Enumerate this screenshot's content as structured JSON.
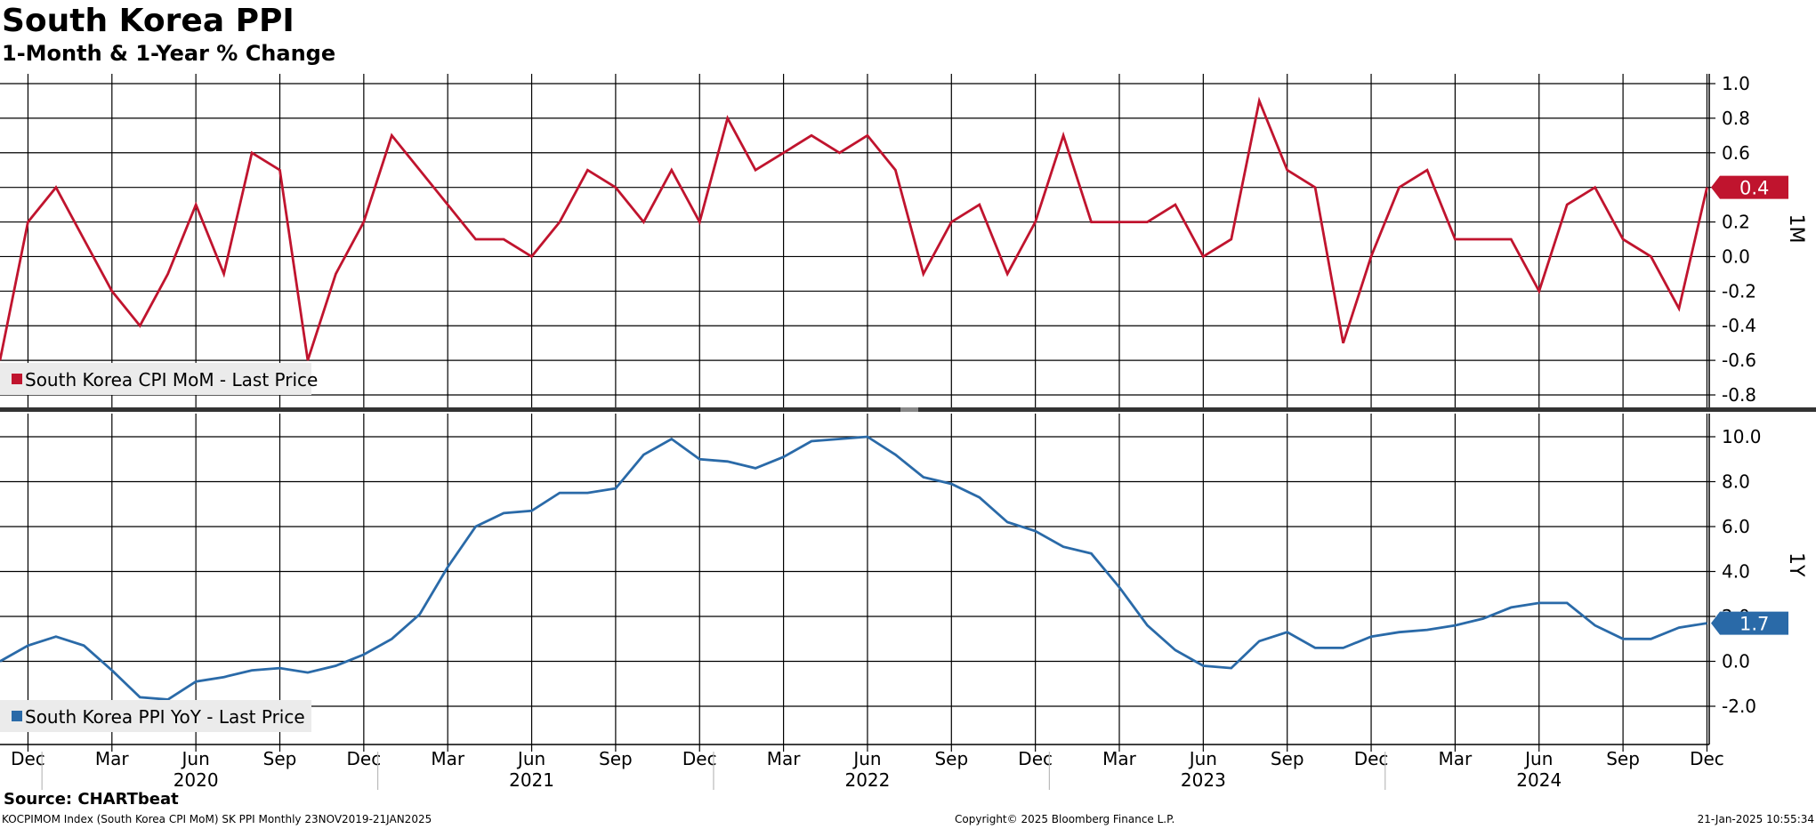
{
  "header": {
    "title": "South Korea PPI",
    "subtitle": "1-Month & 1-Year % Change"
  },
  "footer": {
    "source": "Source: CHARTbeat",
    "ticker_info": "KOCPIMOM Index (South Korea CPI MoM) SK PPI  Monthly 23NOV2019-21JAN2025",
    "copyright": "Copyright© 2025 Bloomberg Finance L.P.",
    "timestamp": "21-Jan-2025 10:55:34"
  },
  "chart_data": [
    {
      "type": "line",
      "panel": "top",
      "axis_label": "1M",
      "legend": "South Korea CPI MoM - Last Price",
      "last_value_label": "0.4",
      "color": "#c0142e",
      "ylim": [
        -0.85,
        1.05
      ],
      "yticks": [
        1.0,
        0.8,
        0.6,
        0.4,
        0.2,
        0.0,
        -0.2,
        -0.4,
        -0.6,
        -0.8
      ],
      "ytick_labels": [
        "1.0",
        "0.8",
        "0.6",
        "0.4",
        "0.2",
        "0.0",
        "-0.2",
        "-0.4",
        "-0.6",
        "-0.8"
      ],
      "grid": true,
      "legend_placement": "bottom-left",
      "x": [
        "2019-11",
        "2019-12",
        "2020-01",
        "2020-02",
        "2020-03",
        "2020-04",
        "2020-05",
        "2020-06",
        "2020-07",
        "2020-08",
        "2020-09",
        "2020-10",
        "2020-11",
        "2020-12",
        "2021-01",
        "2021-02",
        "2021-03",
        "2021-04",
        "2021-05",
        "2021-06",
        "2021-07",
        "2021-08",
        "2021-09",
        "2021-10",
        "2021-11",
        "2021-12",
        "2022-01",
        "2022-02",
        "2022-03",
        "2022-04",
        "2022-05",
        "2022-06",
        "2022-07",
        "2022-08",
        "2022-09",
        "2022-10",
        "2022-11",
        "2022-12",
        "2023-01",
        "2023-02",
        "2023-03",
        "2023-04",
        "2023-05",
        "2023-06",
        "2023-07",
        "2023-08",
        "2023-09",
        "2023-10",
        "2023-11",
        "2023-12",
        "2024-01",
        "2024-02",
        "2024-03",
        "2024-04",
        "2024-05",
        "2024-06",
        "2024-07",
        "2024-08",
        "2024-09",
        "2024-10",
        "2024-11",
        "2024-12"
      ],
      "values": [
        -0.6,
        0.2,
        0.4,
        0.1,
        -0.2,
        -0.4,
        -0.1,
        0.3,
        -0.1,
        0.6,
        0.5,
        -0.6,
        -0.1,
        0.2,
        0.7,
        0.5,
        0.3,
        0.1,
        0.1,
        0.0,
        0.2,
        0.5,
        0.4,
        0.2,
        0.5,
        0.2,
        0.8,
        0.5,
        0.6,
        0.7,
        0.6,
        0.7,
        0.5,
        -0.1,
        0.2,
        0.3,
        -0.1,
        0.2,
        0.7,
        0.2,
        0.2,
        0.2,
        0.3,
        0.0,
        0.1,
        0.9,
        0.5,
        0.4,
        -0.5,
        0.0,
        0.4,
        0.5,
        0.1,
        0.1,
        0.1,
        -0.2,
        0.3,
        0.4,
        0.1,
        0.0,
        -0.3,
        0.4
      ]
    },
    {
      "type": "line",
      "panel": "bottom",
      "axis_label": "1Y",
      "legend": "South Korea PPI YoY - Last Price",
      "last_value_label": "1.7",
      "color": "#2a6aa8",
      "ylim": [
        -3.7,
        11.0
      ],
      "yticks": [
        10.0,
        8.0,
        6.0,
        4.0,
        2.0,
        0.0,
        -2.0
      ],
      "ytick_labels": [
        "10.0",
        "8.0",
        "6.0",
        "4.0",
        "2.0",
        "0.0",
        "-2.0"
      ],
      "grid": true,
      "legend_placement": "bottom-left",
      "x": [
        "2019-11",
        "2019-12",
        "2020-01",
        "2020-02",
        "2020-03",
        "2020-04",
        "2020-05",
        "2020-06",
        "2020-07",
        "2020-08",
        "2020-09",
        "2020-10",
        "2020-11",
        "2020-12",
        "2021-01",
        "2021-02",
        "2021-03",
        "2021-04",
        "2021-05",
        "2021-06",
        "2021-07",
        "2021-08",
        "2021-09",
        "2021-10",
        "2021-11",
        "2021-12",
        "2022-01",
        "2022-02",
        "2022-03",
        "2022-04",
        "2022-05",
        "2022-06",
        "2022-07",
        "2022-08",
        "2022-09",
        "2022-10",
        "2022-11",
        "2022-12",
        "2023-01",
        "2023-02",
        "2023-03",
        "2023-04",
        "2023-05",
        "2023-06",
        "2023-07",
        "2023-08",
        "2023-09",
        "2023-10",
        "2023-11",
        "2023-12",
        "2024-01",
        "2024-02",
        "2024-03",
        "2024-04",
        "2024-05",
        "2024-06",
        "2024-07",
        "2024-08",
        "2024-09",
        "2024-10",
        "2024-11",
        "2024-12"
      ],
      "values": [
        0.0,
        0.7,
        1.1,
        0.7,
        -0.4,
        -1.6,
        -1.7,
        -0.9,
        -0.7,
        -0.4,
        -0.3,
        -0.5,
        -0.2,
        0.3,
        1.0,
        2.1,
        4.2,
        6.0,
        6.6,
        6.7,
        7.5,
        7.5,
        7.7,
        9.2,
        9.9,
        9.0,
        8.9,
        8.6,
        9.1,
        9.8,
        9.9,
        10.0,
        9.2,
        8.2,
        7.9,
        7.3,
        6.2,
        5.8,
        5.1,
        4.8,
        3.3,
        1.6,
        0.5,
        -0.2,
        -0.3,
        0.9,
        1.3,
        0.6,
        0.6,
        1.1,
        1.3,
        1.4,
        1.6,
        1.9,
        2.4,
        2.6,
        2.6,
        1.6,
        1.0,
        1.0,
        1.5,
        1.7
      ]
    }
  ],
  "x_axis": {
    "month_ticks": [
      {
        "label": "Dec",
        "i": 1
      },
      {
        "label": "Mar",
        "i": 4
      },
      {
        "label": "Jun",
        "i": 7
      },
      {
        "label": "Sep",
        "i": 10
      },
      {
        "label": "Dec",
        "i": 13
      },
      {
        "label": "Mar",
        "i": 16
      },
      {
        "label": "Jun",
        "i": 19
      },
      {
        "label": "Sep",
        "i": 22
      },
      {
        "label": "Dec",
        "i": 25
      },
      {
        "label": "Mar",
        "i": 28
      },
      {
        "label": "Jun",
        "i": 31
      },
      {
        "label": "Sep",
        "i": 34
      },
      {
        "label": "Dec",
        "i": 37
      },
      {
        "label": "Mar",
        "i": 40
      },
      {
        "label": "Jun",
        "i": 43
      },
      {
        "label": "Sep",
        "i": 46
      },
      {
        "label": "Dec",
        "i": 49
      },
      {
        "label": "Mar",
        "i": 52
      },
      {
        "label": "Jun",
        "i": 55
      },
      {
        "label": "Sep",
        "i": 58
      },
      {
        "label": "Dec",
        "i": 61
      }
    ],
    "year_labels": [
      {
        "label": "2020",
        "i": 7
      },
      {
        "label": "2021",
        "i": 19
      },
      {
        "label": "2022",
        "i": 31
      },
      {
        "label": "2023",
        "i": 43
      },
      {
        "label": "2024",
        "i": 55
      }
    ],
    "year_dividers": [
      1.5,
      13.5,
      25.5,
      37.5,
      49.5
    ]
  }
}
